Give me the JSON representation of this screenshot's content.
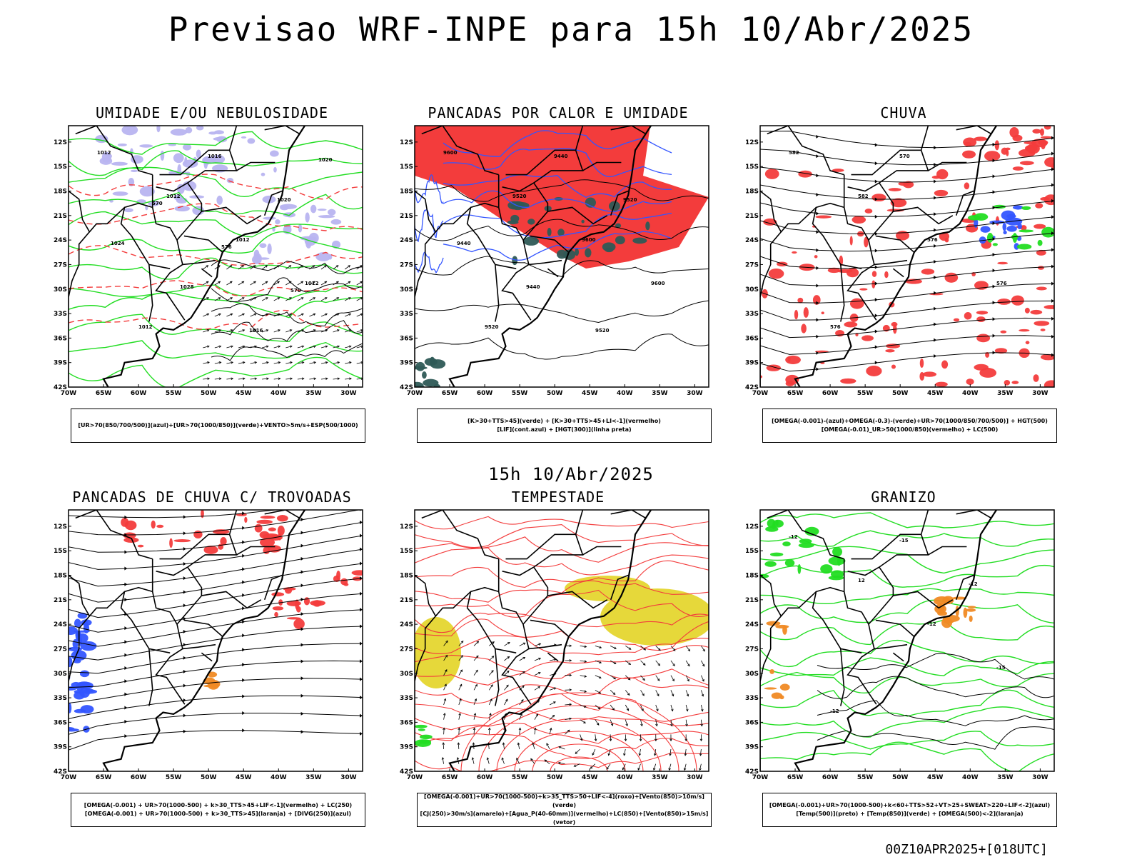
{
  "title": "Previsao WRF-INPE  para 15h 10/Abr/2025",
  "subtitle": "15h 10/Abr/2025",
  "footer": "00Z10APR2025+[018UTC]",
  "lat_labels": [
    "12S",
    "15S",
    "18S",
    "21S",
    "24S",
    "27S",
    "30S",
    "33S",
    "36S",
    "39S",
    "42S"
  ],
  "lon_labels": [
    "70W",
    "65W",
    "60W",
    "55W",
    "50W",
    "45W",
    "40W",
    "35W",
    "30W"
  ],
  "colors": {
    "red": "#f33c3c",
    "green": "#22dd22",
    "blue": "#3355ff",
    "lavender": "#b8b4f0",
    "darkteal": "#2e5a56",
    "yellow": "#e6d83a",
    "orange": "#f08a24"
  },
  "panels": [
    {
      "title": "UMIDADE E/OU NEBULOSIDADE",
      "legend": [
        "[UR>70(850/700/500)](azul)+[UR>70(1000/850)](verde)+VENTO>5m/s+ESP(500/1000)"
      ],
      "contour_labels": [
        "1012",
        "1012",
        "1012",
        "1012",
        "1012",
        "1016",
        "1020",
        "1024",
        "1028",
        "1016",
        "1020",
        "570",
        "576",
        "570"
      ]
    },
    {
      "title": "PANCADAS POR CALOR E UMIDADE",
      "legend": [
        "[K>30+TTS>45](verde) + [K>30+TTS>45+LI<-1](vermelho)",
        "[LIF](cont.azul) + [HGT(300)](linha preta)"
      ],
      "contour_labels": [
        "9600",
        "9520",
        "9600",
        "9600",
        "9520",
        "9440",
        "9520",
        "9440",
        "9440",
        "9520"
      ]
    },
    {
      "title": "CHUVA",
      "legend": [
        "[OMEGA(-0.001)-(azul)+OMEGA(-0.3)-(verde)+UR>70(1000/850/700/500)] + HGT(500)",
        "[OMEGA(-0.01)_UR>50(1000/850)(vermelho) + LC(500)"
      ],
      "contour_labels": [
        "582",
        "582",
        "576",
        "576",
        "576",
        "570"
      ]
    },
    {
      "title": "PANCADAS DE CHUVA C/ TROVOADAS",
      "legend": [
        "[OMEGA(-0.001) + UR>70(1000-500) + k>30_TTS>45+LIF<-1](vermelho) + LC(250)",
        "[OMEGA(-0.001) + UR>70(1000-500) + k>30_TTS>45](laranja) + [DIVG(250)](azul)"
      ],
      "contour_labels": []
    },
    {
      "title": "TEMPESTADE",
      "legend": [
        "[OMEGA(-0.001)+UR>70(1000-500)+k>35_TTS>50+LIF<-4](roxo)+[Vento(850)>10m/s](verde)",
        "[CJ(250)>30m/s](amarelo)+[Agua_P(40-60mm)](vermelho)+LC(850)+[Vento(850)>15m/s](vetor)"
      ],
      "contour_labels": []
    },
    {
      "title": "GRANIZO",
      "legend": [
        "[OMEGA(-0.001)+UR>70(1000-500)+k<60+TTS>52+VT>25+SWEAT>220+LIF<-2](azul)",
        "[Temp(500)](preto) + [Temp(850)](verde) + [OMEGA(500)<-2](laranja)"
      ],
      "contour_labels": [
        "-12",
        "12",
        "-12",
        "-15",
        "-12",
        "-15",
        "-12"
      ]
    }
  ]
}
